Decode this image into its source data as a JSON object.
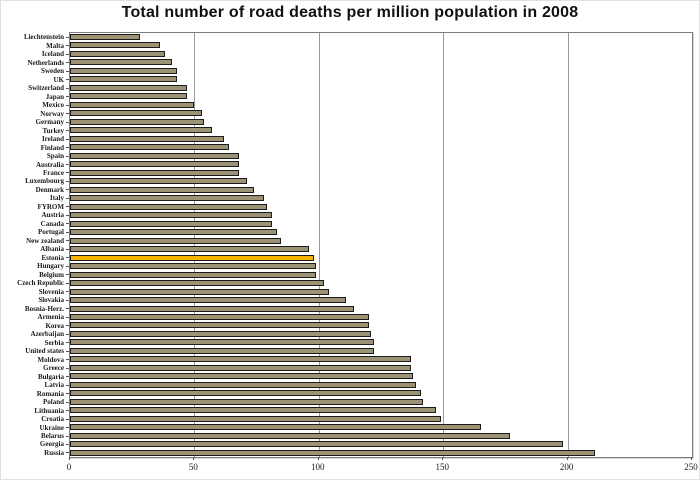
{
  "chart_data": {
    "type": "bar",
    "orientation": "horizontal",
    "title": "Total number of road deaths per million population in 2008",
    "xlabel": "",
    "ylabel": "",
    "xlim": [
      0,
      250
    ],
    "x_ticks": [
      0,
      50,
      100,
      150,
      200,
      250
    ],
    "grid": "vertical",
    "bar_color": "#9c9377",
    "bar_border_color": "#1c1c1c",
    "gridline_color": "#9a9a9a",
    "highlight": {
      "category": "Estonia",
      "color": "#f9b400"
    },
    "categories": [
      "Liechtenstein",
      "Malta",
      "Iceland",
      "Netherlands",
      "Sweden",
      "UK",
      "Switzerland",
      "Japan",
      "Mexico",
      "Norway",
      "Germany",
      "Turkey",
      "Ireland",
      "Finland",
      "Spain",
      "Australia",
      "France",
      "Luxembourg",
      "Denmark",
      "Italy",
      "FYROM",
      "Austria",
      "Canada",
      "Portugal",
      "New zealand",
      "Albania",
      "Estonia",
      "Hungary",
      "Belgium",
      "Czech Republic",
      "Slovenia",
      "Slovakia",
      "Bosnia-Herz.",
      "Armenia",
      "Korea",
      "Azerbaijan",
      "Serbia",
      "United states",
      "Moldova",
      "Greece",
      "Bulgaria",
      "Latvia",
      "Romania",
      "Poland",
      "Lithuania",
      "Croatia",
      "Ukraine",
      "Belarus",
      "Georgia",
      "Russia"
    ],
    "values": [
      28,
      36,
      38,
      41,
      43,
      43,
      47,
      47,
      50,
      53,
      54,
      57,
      62,
      64,
      68,
      68,
      68,
      71,
      74,
      78,
      79,
      81,
      81,
      83,
      85,
      96,
      98,
      99,
      99,
      102,
      104,
      111,
      114,
      120,
      120,
      121,
      122,
      122,
      137,
      137,
      138,
      139,
      141,
      142,
      147,
      149,
      165,
      177,
      198,
      211
    ]
  }
}
